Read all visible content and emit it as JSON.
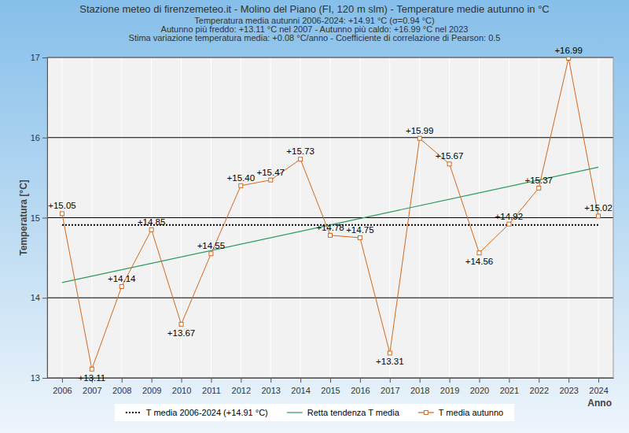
{
  "chart_data": {
    "type": "line",
    "title": "Stazione meteo di firenzemeteo.it - Molino del Piano (FI, 120 m slm) - Temperature medie autunno in °C",
    "subtitle": [
      "Temperatura media autunni 2006-2024: +14.91 °C (σ=0.94 °C)",
      "Autunno più freddo: +13.11 °C nel 2007 - Autunno più caldo: +16.99 °C nel 2023",
      "Stima variazione temperatura media: +0.08 °C/anno - Coefficiente di correlazione di Pearson: 0.5"
    ],
    "x_label": "Anno",
    "y_label": "Temperatura [°C]",
    "categories": [
      "2006",
      "2007",
      "2008",
      "2009",
      "2010",
      "2011",
      "2012",
      "2013",
      "2014",
      "2015",
      "2016",
      "2017",
      "2018",
      "2019",
      "2020",
      "2021",
      "2022",
      "2023",
      "2024"
    ],
    "series": [
      {
        "name": "T media autunno",
        "color": "#d2691e",
        "marker": "square",
        "line_style": "solid",
        "values": [
          15.05,
          13.11,
          14.14,
          14.85,
          13.67,
          14.55,
          15.4,
          15.47,
          15.73,
          14.78,
          14.75,
          13.31,
          15.99,
          15.67,
          14.56,
          14.92,
          15.37,
          16.99,
          15.02
        ],
        "value_labels": [
          "+15.05",
          "+13.11",
          "+14.14",
          "+14.85",
          "+13.67",
          "+14.55",
          "+15.40",
          "+15.47",
          "+15.73",
          "+14.78",
          "+14.75",
          "+13.31",
          "+15.99",
          "+15.67",
          "+14.56",
          "+14.92",
          "+15.37",
          "+16.99",
          "+15.02"
        ]
      }
    ],
    "mean": {
      "name": "T media 2006-2024 (+14.91 °C)",
      "value": 14.91,
      "color": "#000000",
      "line_style": "dotted"
    },
    "trend": {
      "name": "Retta tendenza T media",
      "start": 14.19,
      "end": 15.63,
      "color": "#2e9a5e",
      "line_style": "solid"
    },
    "ylim": [
      13,
      17
    ],
    "yticks": [
      13,
      14,
      15,
      16,
      17
    ],
    "grid": true,
    "data_labels": true,
    "legend": "bottom"
  }
}
